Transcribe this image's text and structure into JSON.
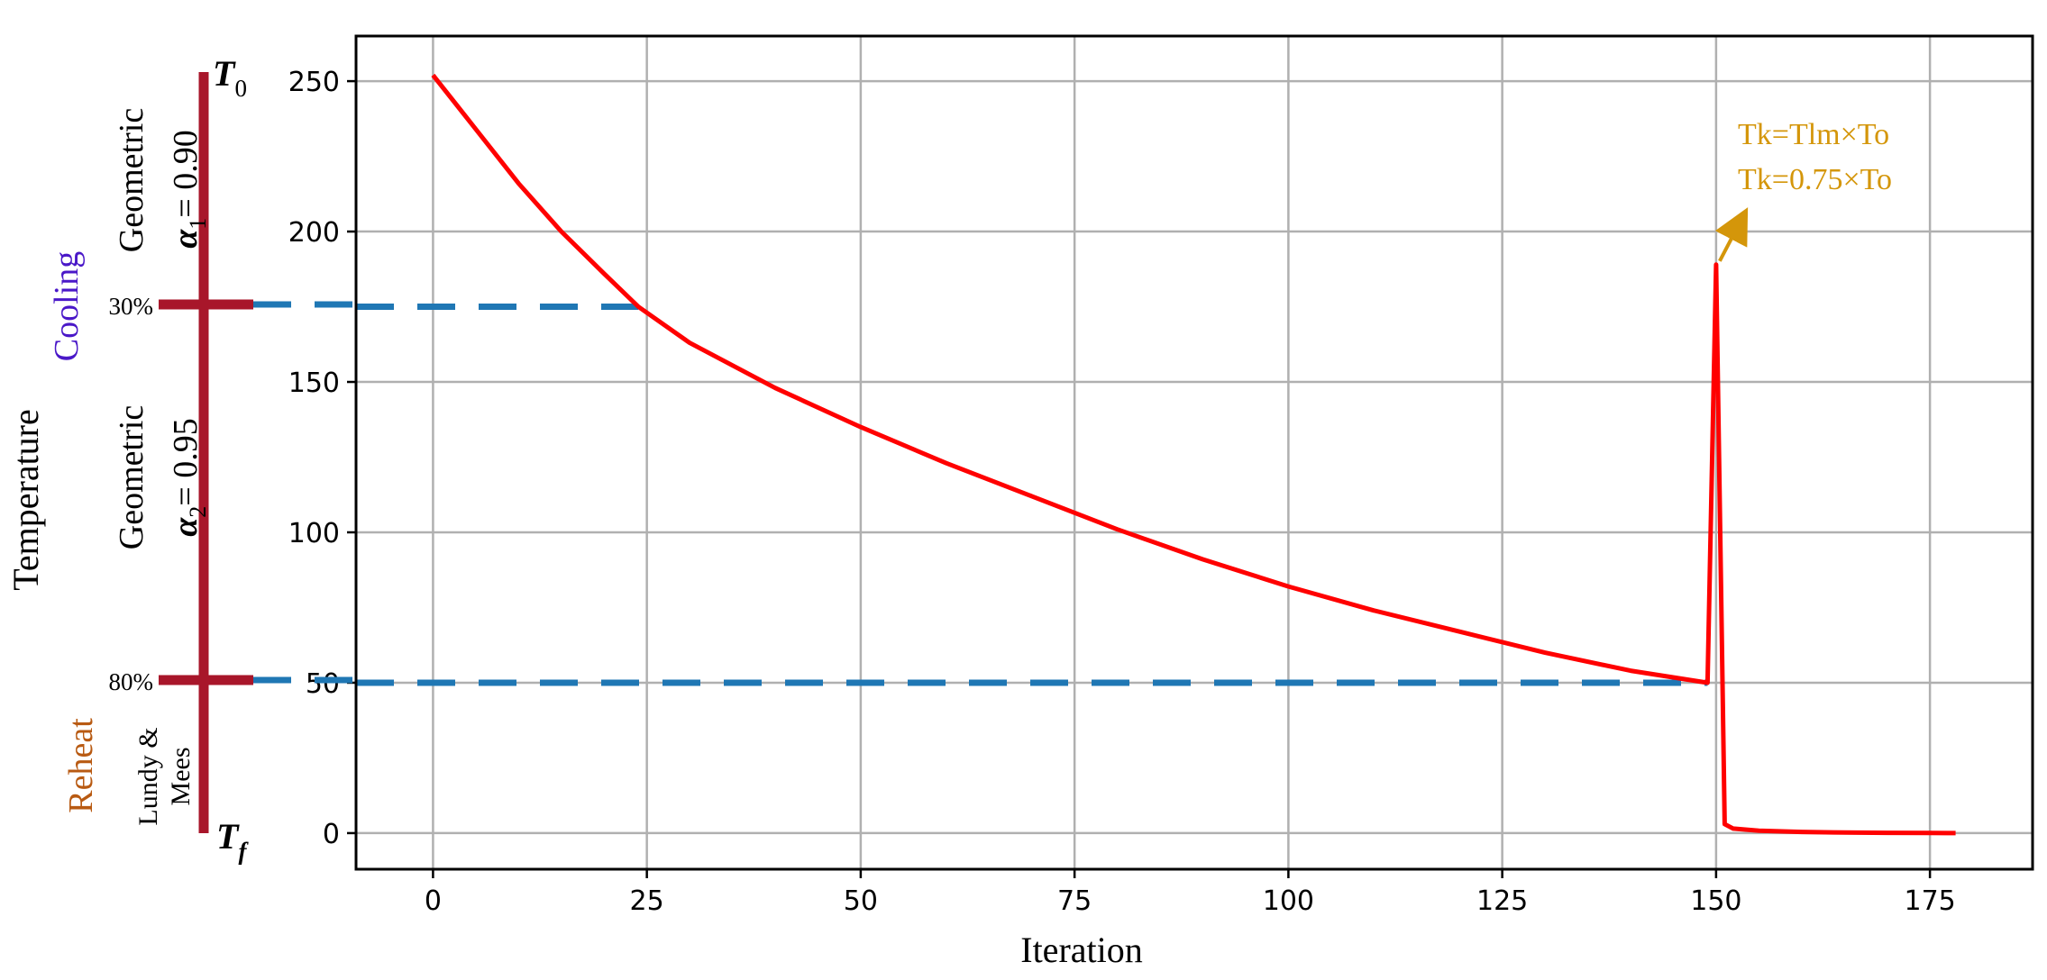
{
  "chart_data": {
    "type": "line",
    "xlabel": "Iteration",
    "ylabel": "Temperature",
    "xlim": [
      -9,
      187
    ],
    "ylim": [
      -12,
      265
    ],
    "xticks": [
      0,
      25,
      50,
      75,
      100,
      125,
      150,
      175
    ],
    "yticks": [
      0,
      50,
      100,
      150,
      200,
      250
    ],
    "grid": true,
    "series": [
      {
        "color": "#ff0000",
        "x": [
          0,
          5,
          10,
          15,
          20,
          24,
          30,
          40,
          50,
          60,
          70,
          80,
          90,
          100,
          110,
          120,
          130,
          140,
          149,
          150,
          151,
          152,
          155,
          160,
          165,
          170,
          175,
          178
        ],
        "y": [
          252,
          234,
          216,
          200,
          186,
          175,
          163,
          148,
          135,
          123,
          112,
          101,
          91,
          82,
          74,
          67,
          60,
          54,
          50,
          189,
          3,
          1.5,
          0.8,
          0.4,
          0.2,
          0.1,
          0.05,
          0.0
        ]
      }
    ],
    "reference_lines": [
      {
        "y": 175,
        "x_end": 24,
        "color": "#1f77b4",
        "style": "dashed"
      },
      {
        "y": 50,
        "x_end": 149,
        "color": "#1f77b4",
        "style": "dashed"
      }
    ],
    "annotation": {
      "lines": [
        "Tk=Tlm×To",
        "Tk=0.75×To"
      ],
      "color": "#d4960a",
      "arrow_from": [
        150,
        189
      ]
    }
  },
  "phases": {
    "top_label": "T",
    "top_subscript": "0",
    "bottom_label": "T",
    "bottom_subscript": "f",
    "cooling_label": "Cooling",
    "reheat_label": "Reheat",
    "marker_30": "30%",
    "marker_80": "80%",
    "cooling1_method": "Geometric",
    "cooling1_alpha": "α",
    "cooling1_sub": "1",
    "cooling1_value": "= 0.90",
    "cooling2_method": "Geometric",
    "cooling2_alpha": "α",
    "cooling2_sub": "2",
    "cooling2_value": "= 0.95",
    "reheat_method_line1": "Lundy &",
    "reheat_method_line2": "Mees"
  },
  "colors": {
    "scale_bar": "#a8162a",
    "cooling_text": "#4a18c8",
    "reheat_text": "#b85a12",
    "curve": "#ff0000",
    "dashed": "#1f77b4",
    "annotation": "#d4960a",
    "grid": "#b0b0b0"
  }
}
